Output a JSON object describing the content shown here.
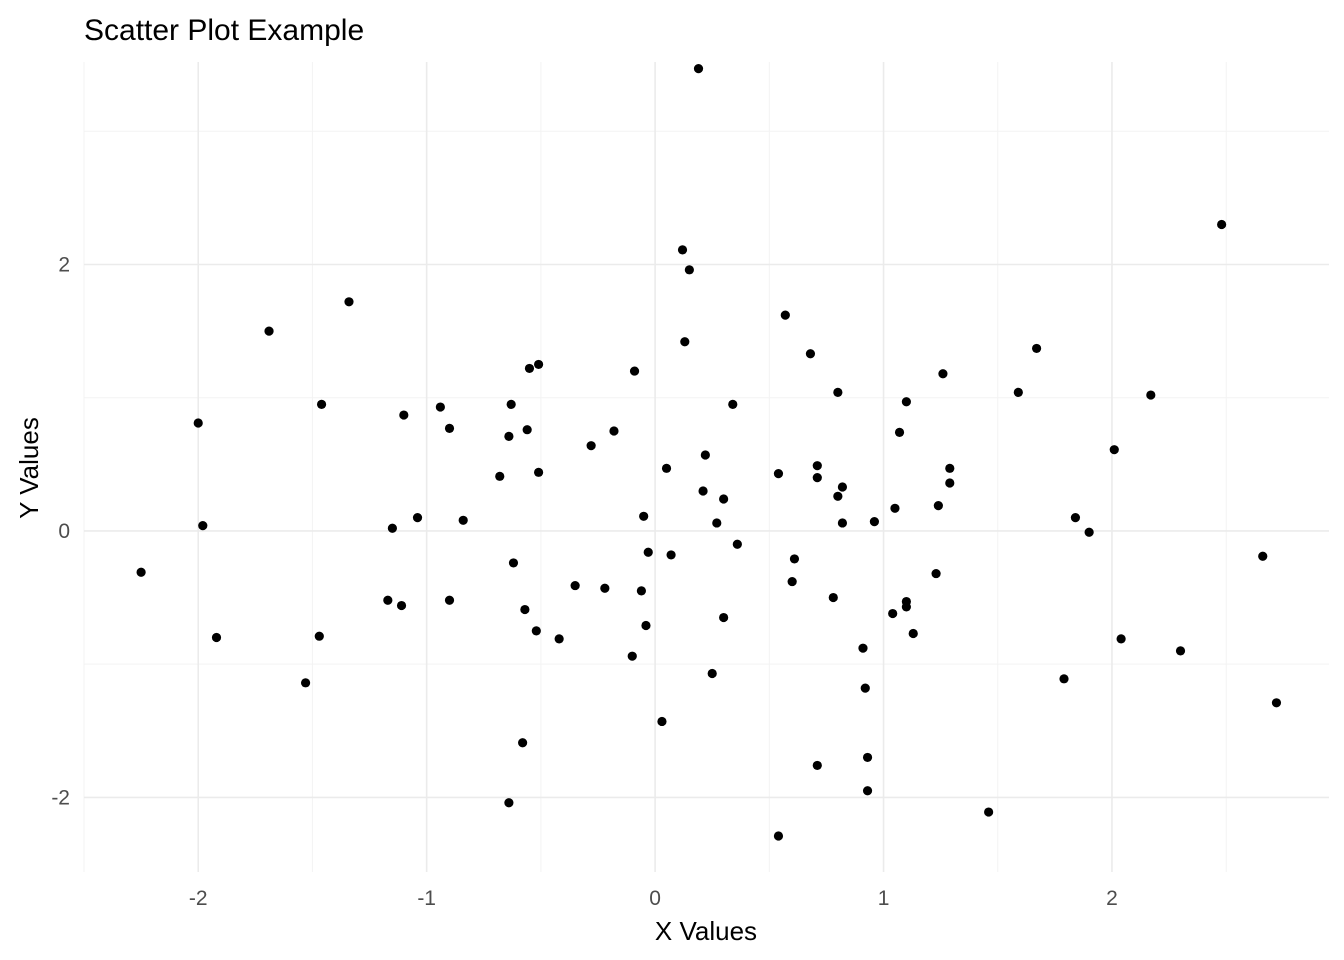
{
  "chart_data": {
    "type": "scatter",
    "title": "Scatter Plot Example",
    "xlabel": "X Values",
    "ylabel": "Y Values",
    "xlim": [
      -2.5,
      2.95
    ],
    "ylim": [
      -2.56,
      3.52
    ],
    "x_ticks": [
      -2,
      -1,
      0,
      1,
      2
    ],
    "y_ticks": [
      -2,
      0,
      2
    ],
    "x_tick_labels": [
      "-2",
      "-1",
      "0",
      "1",
      "2"
    ],
    "y_tick_labels": [
      "-2",
      "0",
      "2"
    ],
    "grid": true,
    "legend": "none",
    "point_color": "#000000",
    "points": [
      [
        -2.25,
        -0.31
      ],
      [
        -2.0,
        0.81
      ],
      [
        -1.98,
        0.04
      ],
      [
        -1.92,
        -0.8
      ],
      [
        -1.69,
        1.5
      ],
      [
        -1.53,
        -1.14
      ],
      [
        -1.47,
        -0.79
      ],
      [
        -1.46,
        0.95
      ],
      [
        -1.34,
        1.72
      ],
      [
        -1.17,
        -0.52
      ],
      [
        -1.15,
        0.02
      ],
      [
        -1.11,
        -0.56
      ],
      [
        -1.1,
        0.87
      ],
      [
        -1.04,
        0.1
      ],
      [
        -0.94,
        0.93
      ],
      [
        -0.9,
        0.77
      ],
      [
        -0.9,
        -0.52
      ],
      [
        -0.84,
        0.08
      ],
      [
        -0.68,
        0.41
      ],
      [
        -0.64,
        0.71
      ],
      [
        -0.63,
        0.95
      ],
      [
        -0.62,
        -0.24
      ],
      [
        -0.64,
        -2.04
      ],
      [
        -0.57,
        -0.59
      ],
      [
        -0.56,
        0.76
      ],
      [
        -0.55,
        1.22
      ],
      [
        -0.52,
        -0.75
      ],
      [
        -0.51,
        1.25
      ],
      [
        -0.51,
        0.44
      ],
      [
        -0.58,
        -1.59
      ],
      [
        -0.42,
        -0.81
      ],
      [
        -0.35,
        -0.41
      ],
      [
        -0.28,
        0.64
      ],
      [
        -0.22,
        -0.43
      ],
      [
        -0.18,
        0.75
      ],
      [
        -0.1,
        -0.94
      ],
      [
        -0.09,
        1.2
      ],
      [
        -0.06,
        -0.45
      ],
      [
        -0.05,
        0.11
      ],
      [
        -0.04,
        -0.71
      ],
      [
        -0.03,
        -0.16
      ],
      [
        0.03,
        -1.43
      ],
      [
        0.05,
        0.47
      ],
      [
        0.07,
        -0.18
      ],
      [
        0.12,
        2.11
      ],
      [
        0.13,
        1.42
      ],
      [
        0.15,
        1.96
      ],
      [
        0.19,
        3.47
      ],
      [
        0.21,
        0.3
      ],
      [
        0.22,
        0.57
      ],
      [
        0.25,
        -1.07
      ],
      [
        0.27,
        0.06
      ],
      [
        0.3,
        0.24
      ],
      [
        0.3,
        -0.65
      ],
      [
        0.34,
        0.95
      ],
      [
        0.36,
        -0.1
      ],
      [
        0.54,
        0.43
      ],
      [
        0.54,
        -2.29
      ],
      [
        0.57,
        1.62
      ],
      [
        0.6,
        -0.38
      ],
      [
        0.61,
        -0.21
      ],
      [
        0.68,
        1.33
      ],
      [
        0.71,
        0.49
      ],
      [
        0.71,
        0.4
      ],
      [
        0.71,
        -1.76
      ],
      [
        0.78,
        -0.5
      ],
      [
        0.8,
        1.04
      ],
      [
        0.8,
        0.26
      ],
      [
        0.82,
        0.33
      ],
      [
        0.82,
        0.06
      ],
      [
        0.91,
        -0.88
      ],
      [
        0.92,
        -1.18
      ],
      [
        0.93,
        -1.7
      ],
      [
        0.93,
        -1.95
      ],
      [
        0.96,
        0.07
      ],
      [
        1.04,
        -0.62
      ],
      [
        1.05,
        0.17
      ],
      [
        1.07,
        0.74
      ],
      [
        1.1,
        0.97
      ],
      [
        1.1,
        -0.53
      ],
      [
        1.1,
        -0.57
      ],
      [
        1.13,
        -0.77
      ],
      [
        1.23,
        -0.32
      ],
      [
        1.24,
        0.19
      ],
      [
        1.26,
        1.18
      ],
      [
        1.29,
        0.47
      ],
      [
        1.29,
        0.36
      ],
      [
        1.46,
        -2.11
      ],
      [
        1.59,
        1.04
      ],
      [
        1.67,
        1.37
      ],
      [
        1.79,
        -1.11
      ],
      [
        1.84,
        0.1
      ],
      [
        1.9,
        -0.01
      ],
      [
        2.01,
        0.61
      ],
      [
        2.04,
        -0.81
      ],
      [
        2.17,
        1.02
      ],
      [
        2.3,
        -0.9
      ],
      [
        2.48,
        2.3
      ],
      [
        2.66,
        -0.19
      ],
      [
        2.72,
        -1.29
      ]
    ]
  }
}
